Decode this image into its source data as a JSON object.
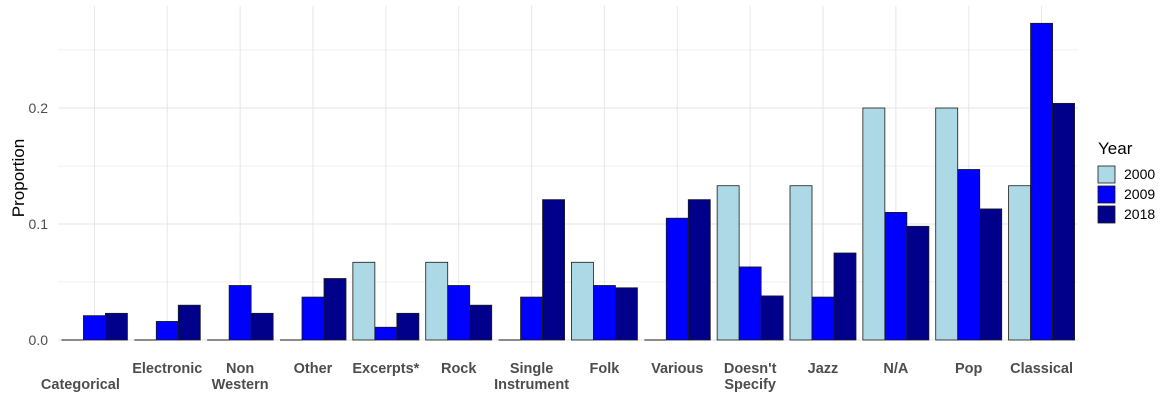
{
  "chart_data": {
    "type": "bar",
    "title": "",
    "xlabel": "",
    "ylabel": "Proportion",
    "ylim": [
      0,
      0.28
    ],
    "yticks": [
      0.0,
      0.1,
      0.2
    ],
    "ytick_labels": [
      "0.0",
      "0.1",
      "0.2"
    ],
    "grid": true,
    "legend_position": "right",
    "legend_title": "Year",
    "categories": [
      "Categorical",
      "Electronic",
      "Non Western",
      "Other",
      "Excerpts*",
      "Rock",
      "Single Instrument",
      "Folk",
      "Various",
      "Doesn't Specify",
      "Jazz",
      "N/A",
      "Pop",
      "Classical"
    ],
    "category_label_lines": [
      [
        "Categorical"
      ],
      [
        "Electronic"
      ],
      [
        "Non",
        "Western"
      ],
      [
        "Other"
      ],
      [
        "Excerpts*"
      ],
      [
        "Rock"
      ],
      [
        "Single",
        "Instrument"
      ],
      [
        "Folk"
      ],
      [
        "Various"
      ],
      [
        "Doesn't",
        "Specify"
      ],
      [
        "Jazz"
      ],
      [
        "N/A"
      ],
      [
        "Pop"
      ],
      [
        "Classical"
      ]
    ],
    "category_label_offset": [
      true,
      false,
      false,
      false,
      false,
      false,
      false,
      false,
      false,
      false,
      false,
      false,
      false,
      false
    ],
    "series": [
      {
        "name": "2000",
        "color": "#add8e6",
        "values": [
          0,
          0,
          0,
          0,
          0.067,
          0.067,
          0,
          0.067,
          0,
          0.133,
          0.133,
          0.2,
          0.2,
          0.133
        ]
      },
      {
        "name": "2009",
        "color": "#0000ff",
        "values": [
          0.021,
          0.016,
          0.047,
          0.037,
          0.011,
          0.047,
          0.037,
          0.047,
          0.105,
          0.063,
          0.037,
          0.11,
          0.147,
          0.273
        ]
      },
      {
        "name": "2018",
        "color": "#00008b",
        "values": [
          0.023,
          0.03,
          0.023,
          0.053,
          0.023,
          0.03,
          0.121,
          0.045,
          0.121,
          0.038,
          0.075,
          0.098,
          0.113,
          0.204
        ]
      }
    ]
  }
}
